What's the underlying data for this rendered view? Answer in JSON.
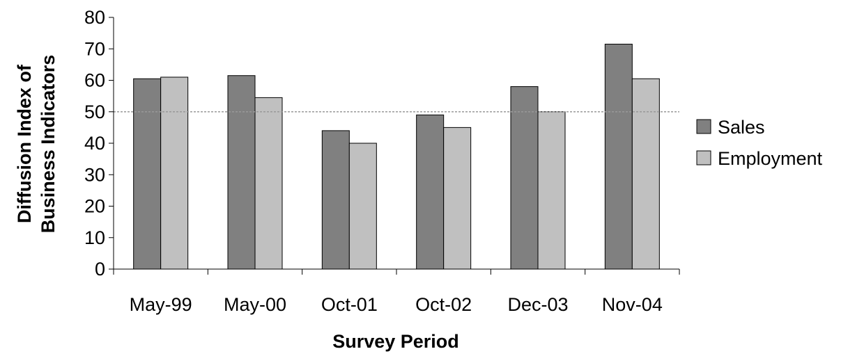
{
  "chart_data": {
    "type": "bar",
    "title": "",
    "xlabel": "Survey Period",
    "ylabel_lines": [
      "Diffusion Index of",
      "Business Indicators"
    ],
    "categories": [
      "May-99",
      "May-00",
      "Oct-01",
      "Oct-02",
      "Dec-03",
      "Nov-04"
    ],
    "series": [
      {
        "name": "Sales",
        "color": "#808080",
        "values": [
          60.5,
          61.5,
          44,
          49,
          58,
          71.5
        ]
      },
      {
        "name": "Employment",
        "color": "#c0c0c0",
        "values": [
          61,
          54.5,
          40,
          45,
          50,
          60.5
        ]
      }
    ],
    "ylim": [
      0,
      80
    ],
    "yticks": [
      0,
      10,
      20,
      30,
      40,
      50,
      60,
      70,
      80
    ],
    "reference_line": 50,
    "grid": false,
    "legend_position": "right"
  }
}
